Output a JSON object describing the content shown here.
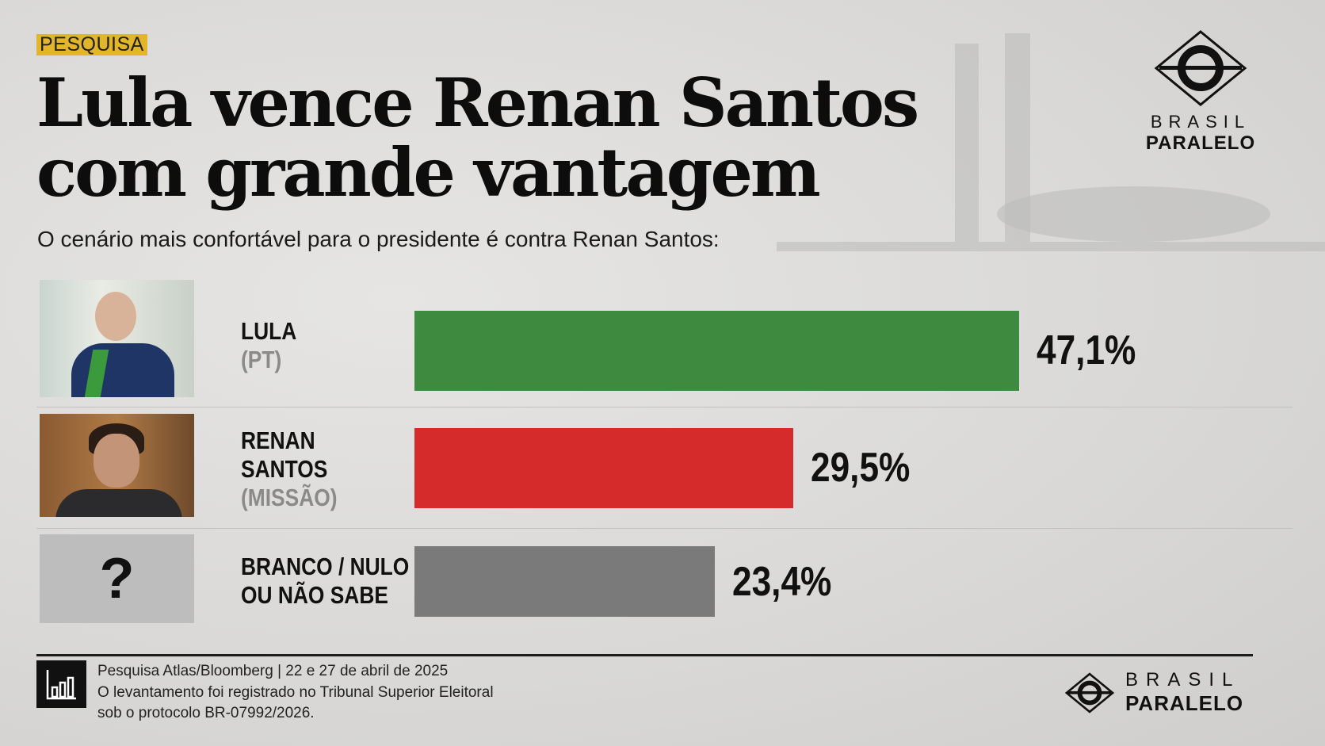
{
  "tag": "PESQUISA",
  "title_line1": "Lula vence Renan Santos",
  "title_line2": "com grande vantagem",
  "subtitle": "O cenário mais confortável para o presidente é contra Renan Santos:",
  "logo": {
    "top": "BRASIL",
    "bottom": "PARALELO"
  },
  "chart_data": {
    "type": "bar",
    "orientation": "horizontal",
    "categories": [
      "LULA (PT)",
      "RENAN SANTOS (MISSÃO)",
      "BRANCO / NULO OU NÃO SABE"
    ],
    "values": [
      47.1,
      29.5,
      23.4
    ],
    "value_labels": [
      "47,1%",
      "29,5%",
      "23,4%"
    ],
    "colors": [
      "#3e8a3e",
      "#d52b2b",
      "#7a7a7a"
    ],
    "rows": [
      {
        "name": "LULA",
        "party": "(PT)",
        "image": "lula-photo"
      },
      {
        "name_line1": "RENAN",
        "name_line2": "SANTOS",
        "party": "(MISSÃO)",
        "image": "renan-photo"
      },
      {
        "name_line1": "BRANCO / NULO",
        "name_line2": "OU NÃO SABE",
        "image": "question-mark",
        "symbol": "?"
      }
    ]
  },
  "footer": {
    "line1": "Pesquisa Atlas/Bloomberg | 22 e 27 de abril de 2025",
    "line2": "O levantamento foi registrado no Tribunal Superior Eleitoral",
    "line3": "sob o protocolo BR-07992/2026.",
    "icon": "bar-chart-icon"
  }
}
